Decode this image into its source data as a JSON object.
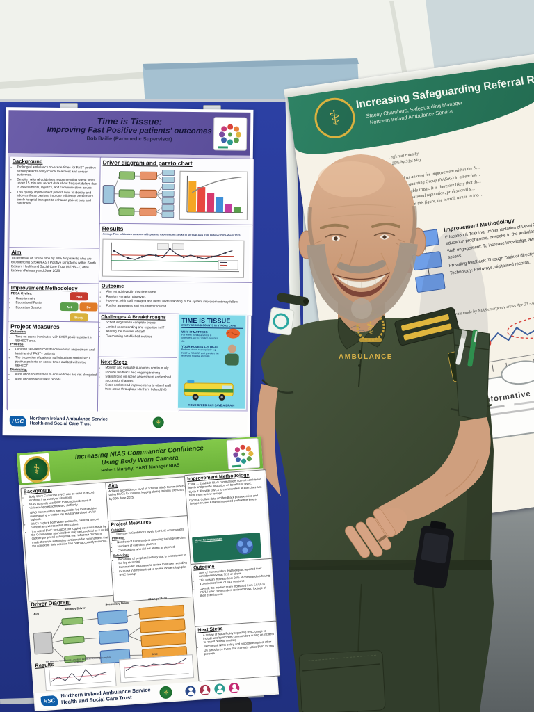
{
  "poster_time_is_tissue": {
    "title_line1": "Time is Tissue:",
    "title_line2": "Improving Fast Positive patients' outcomes",
    "author": "Bob Bailie (Paramedic Supervisor)",
    "background": {
      "heading": "Background",
      "bullets": [
        "Prolonged ambulance on-scene times for FAST-positive stroke patients delay critical treatment and worsen outcomes.",
        "Despite national guidelines recommending scene times under 15 minutes, recent data show frequent delays due to assessments, logistics, and communication issues.",
        "This quality improvement project aims to identify and address these barriers, improve efficiency, and ensure timely hospital transport to enhance patient care and outcomes."
      ]
    },
    "aim": {
      "heading": "Aim",
      "text": "To decrease on scene time by 10% for patients who are experiencing Stroke/FAST Positive symptoms within South Eastern Health and Social Care Trust (SEHSCT) area between February and June 2025."
    },
    "improvement_methodology": {
      "heading": "Improvement Methodology",
      "intro": "PDSA Cycles:",
      "bullets": [
        "Questionnaire",
        "Educational Poster",
        "Education Session"
      ],
      "pdsa": [
        "Plan",
        "Do",
        "Study",
        "Act"
      ]
    },
    "project_measures": {
      "heading": "Project Measures",
      "outcome_label": "Outcome:",
      "outcome_bullets": [
        "Time on scene in minutes with FAST positive patient in SEHSCT area."
      ],
      "process_label": "Process:",
      "process_bullets": [
        "Clinician self-rated confidence levels in assessment and treatment of FAST+ patients",
        "The proportion of patients suffering from stroke/FAST positive patients on scene times audited within the SEHSCT"
      ],
      "balancing_label": "Balancing:",
      "balancing_bullets": [
        "Audit of on scene times to ensure times are not elongated.",
        "Audit of complaints/Datix reports"
      ]
    },
    "driver_pareto": {
      "heading": "Driver diagram and pareto chart"
    },
    "results": {
      "heading": "Results",
      "chart_title": "Average Time in Minutes on scene with patients experiencing Stroke in SE trust area from October 2024-March 2025"
    },
    "outcome": {
      "heading": "Outcome",
      "bullets": [
        "Aim not achieved in this time frame",
        "Random variation observed.",
        "However, with staff engaged and better understanding of the system improvement may follow.",
        "Further awareness and education required."
      ]
    },
    "challenges": {
      "heading": "Challenges & Breakthroughs",
      "bullets": [
        "Scheduling time to complete project",
        "Limited understanding and expertise in IT",
        "Altering the mindset of staff",
        "Overcoming established routines"
      ]
    },
    "next_steps": {
      "heading": "Next Steps",
      "bullets": [
        "Monitor and evaluate outcomes continuously",
        "Provide feedback and ongoing training",
        "Standardise on scene assessment and embed successful changes",
        "Scale and spread improvements to other health trust areas throughout Northern Ireland (NI)"
      ]
    },
    "tissue_box": {
      "title": "TIME IS TISSUE",
      "subtitle": "EVERY SECOND COUNTS IN STROKE CARE",
      "why_heading": "WHY IT MATTERS",
      "why_text": "For every minute a stroke is untreated, up to 2 million neurons die",
      "role_heading": "YOUR ROLE IS CRITICAL",
      "role_text": "Perform stroke scale quickly e.g. FAST or ROSIER and pre-alert the receiving hospital en route",
      "footer": "YOUR SPEED CAN SAVE A BRAIN"
    },
    "footer": {
      "hsc": "HSC",
      "org_line1": "Northern Ireland Ambulance Service",
      "org_line2": "Health and Social Care Trust"
    }
  },
  "poster_safeguarding": {
    "title": "Increasing Safeguarding  Referral Rate",
    "author": "Stacey Chambers, Safeguarding Manager",
    "org": "Northern Ireland Ambulance Service",
    "aim_lines": [
      "… referral rates by",
      "… 20% by 31st May"
    ],
    "body_lines": [
      "… RQIA in 2019, safeguarding practice was identified as an area for improvement within the N…",
      "… the NIAS have engaged the National Ambulance Safeguarding Group (NASaG) in a benchm…",
      "… referral rates as lower than those expected in comparable trusts. It is therefore likely that th…",
      "… that will impact upon patient care, experience, organisational reputation, professional s…",
      "… referral rate for April 2023 - April 2024 is 89. Based on this figure, the overall aim is to inc…",
      "… value of 106."
    ],
    "improvement_methodology": {
      "heading": "Improvement Methodology",
      "items": [
        "Education & Training: Implementation of Level 3 safeguarding education programme, bespoke to the ambulance service.",
        "Staff engagement: To increase knowledge, awareness and access.",
        "Providing feedback: Through Datix or directly",
        "Technology: Pathways, digitalised records."
      ]
    },
    "chart_caption": "… referrals made by NIAS emergency crews  Apr 23 - Apr 25",
    "wordcloud_main": "Informative"
  },
  "poster_bwc": {
    "title_line1": "Increasing NIAS Commander Confidence",
    "title_line2": "Using Body Worn Camera",
    "author": "Robert Murphy, HART Manager NIAS",
    "background": {
      "heading": "Background",
      "bullets": [
        "Body Worn Cameras (BWC) can be used to record incidents in a variety of situations.",
        "NIAS currently use BWC to record incidences of Violence/aggression toward staff only.",
        "NIAS Commanders are required to log their decision making using a written log in a standardised NARU logbook.",
        "BWCs capture both video and audio, creating a more comprehensive record of an incident.",
        "The use of BWC to support the logging decisions made by the Commander at an incident may be beneficial as it could capture peripheral activity that may influence decisions made therefore increasing confidence for commanders that the context of their decision has been accurately recorded."
      ]
    },
    "aim": {
      "heading": "Aim",
      "text": "Achieve a confidence level of 7/10 for NIAS Commanders using BWCs for incident logging during training exercises by 30th June 2025."
    },
    "project_measures": {
      "heading": "Project Measures",
      "outcome_label": "Outcome:",
      "outcome_bullets": [
        "Increase in Confidence levels for NIAS commanders"
      ],
      "process_label": "Process:",
      "process_bullets": [
        "Numbers of Commanders attending training/exercises",
        "Numbers of exercises planned",
        "Commanders who did not attend as planned"
      ],
      "balancing_label": "Balancing:",
      "balancing_bullets": [
        "Recording of peripheral activity that is not relevant to the log recording",
        "Commander reluctance to review their own recording",
        "Increase in time involved to review incident logs plus BWC footage"
      ]
    },
    "improvement_methodology": {
      "heading": "Improvement Methodology",
      "cycles": [
        "Cycle 1: Establish NIAS commanders current confidence levels and provide education on benefits of BWC.",
        "Cycle 2: Provide BWCs to commanders at exercises and have them review footage.",
        "Cycle 3: Collect data and feedback post exercise and footage review. Establish updated confidence levels."
      ],
      "model_label": "Model for Improvement"
    },
    "outcome": {
      "heading": "Outcome",
      "bullets": [
        "70% of Commanders that took part reported their confidence level at 7/10 or above",
        "This was an increase from 20% of commanders having a confidence level of 7/10 or above",
        "Overall, the median score increased from 5.5/10 to 7.5/10 after commanders reviewed BWC footage of their exercise role"
      ]
    },
    "next_steps": {
      "heading": "Next Steps",
      "bullets": [
        "A review of NIAS Policy regarding BWC usage to include use by incident commanders during an incident to record decision making",
        "Benchmark NIAS policy and procedure against other UK ambulance trusts that currently utilise BWC for this purpose"
      ]
    },
    "driver_diagram": {
      "heading": "Driver Diagram",
      "col_aim": "Aim",
      "col_primary": "Primary Driver",
      "col_secondary": "Secondary Driver",
      "col_change": "Change Ideas"
    },
    "results": {
      "heading": "Results",
      "chart1_title": "Pre exercise Confidence Levels in incident recording using Log book only",
      "chart2_title": "Post exercise Confidence Levels in incident recording after using BWC"
    },
    "footer": {
      "hsc": "HSC",
      "org_line1": "Northern Ireland Ambulance Service",
      "org_line2": "Health and Social Care Trust"
    }
  },
  "person": {
    "chest_label": "AMBULANCE"
  }
}
